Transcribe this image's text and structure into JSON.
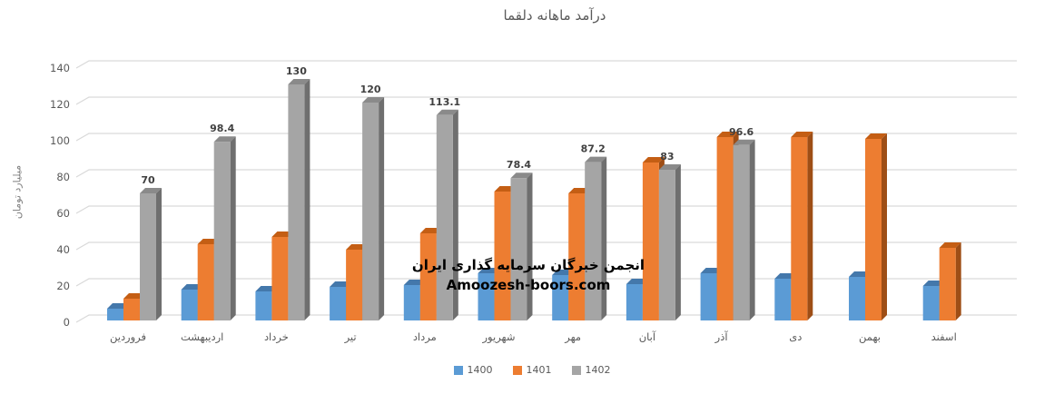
{
  "title": "درآمد ماهانه دلقما",
  "y_axis_title": "میلیارد تومان",
  "watermark": {
    "line1": "انجمن خبرگان سرمایه گذاری ایران",
    "line2": "Amoozesh-boors.com"
  },
  "legend": [
    {
      "label": "1400",
      "color": "#5B9BD5"
    },
    {
      "label": "1401",
      "color": "#ED7D31"
    },
    {
      "label": "1402",
      "color": "#A5A5A5"
    }
  ],
  "colors": {
    "gridline": "#D9D9D9",
    "axis_text": "#595959",
    "data_label": "#404040",
    "background": "#ffffff"
  },
  "chart_data": {
    "type": "bar",
    "style": "3d-clustered-column",
    "title": "درآمد ماهانه دلقما",
    "ylabel": "میلیارد تومان",
    "xlabel": "",
    "ylim": [
      0,
      140
    ],
    "y_tick_step": 20,
    "y_ticks": [
      "0",
      "20",
      "40",
      "60",
      "80",
      "100",
      "120",
      "140"
    ],
    "grid": true,
    "legend_position": "bottom",
    "categories": [
      "فروردین",
      "اردیبهشت",
      "خرداد",
      "تیر",
      "مرداد",
      "شهریور",
      "مهر",
      "آبان",
      "آذر",
      "دی",
      "بهمن",
      "اسفند"
    ],
    "series": [
      {
        "name": "1400",
        "front": "#5B9BD5",
        "top": "#4478ab",
        "side": "#39648f",
        "values": [
          6.5,
          17,
          16,
          18.5,
          19.5,
          26,
          25,
          20,
          26,
          23,
          24,
          19
        ],
        "data_labels": [
          "",
          "",
          "",
          "",
          "",
          "",
          "",
          "",
          "",
          "",
          "",
          ""
        ]
      },
      {
        "name": "1401",
        "front": "#ED7D31",
        "top": "#c45e14",
        "side": "#9e4e16",
        "values": [
          12,
          42,
          46,
          39,
          48,
          71,
          70,
          87,
          101,
          101,
          100,
          40
        ],
        "data_labels": [
          "",
          "",
          "",
          "",
          "",
          "",
          "",
          "",
          "",
          "",
          "",
          ""
        ]
      },
      {
        "name": "1402",
        "front": "#A5A5A5",
        "top": "#8a8a8a",
        "side": "#6f6f6f",
        "values": [
          70,
          98.4,
          130,
          120,
          113.1,
          78.4,
          87.2,
          83,
          96.6,
          null,
          null,
          null
        ],
        "data_labels": [
          "70",
          "98.4",
          "130",
          "120",
          "113.1",
          "78.4",
          "87.2",
          "83",
          "96.6",
          "",
          "",
          ""
        ]
      }
    ]
  }
}
